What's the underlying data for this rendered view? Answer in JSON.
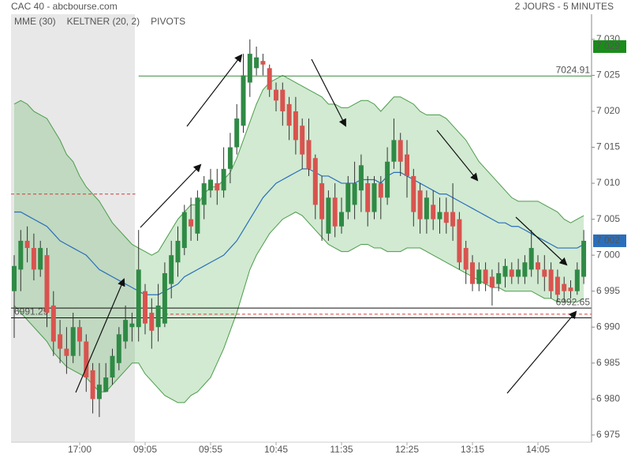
{
  "chart_data": {
    "type": "candlestick",
    "title": "CAC 40 - abcbourse.com",
    "subtitle": "2 JOURS - 5 MINUTES",
    "categories": [
      null,
      null,
      null,
      null,
      null,
      null,
      null,
      null,
      null,
      null,
      "17:00",
      null,
      null,
      null,
      null,
      null,
      null,
      null,
      null,
      null,
      "09:05",
      null,
      null,
      null,
      null,
      null,
      null,
      null,
      null,
      null,
      "09:55",
      null,
      null,
      null,
      null,
      null,
      null,
      null,
      null,
      null,
      "10:45",
      null,
      null,
      null,
      null,
      null,
      null,
      null,
      null,
      null,
      "11:35",
      null,
      null,
      null,
      null,
      null,
      null,
      null,
      null,
      null,
      "12:25",
      null,
      null,
      null,
      null,
      null,
      null,
      null,
      null,
      null,
      "13:15",
      null,
      null,
      null,
      null,
      null,
      null,
      null,
      null,
      null,
      "14:05",
      null,
      null,
      null,
      null,
      null,
      null,
      null
    ],
    "open": [
      6995,
      6998,
      7002,
      7001,
      6998,
      7000,
      6993,
      6989,
      6987,
      6986,
      6990,
      6988,
      6984,
      6980,
      6981,
      6983,
      6985,
      6988,
      6990,
      6990,
      6995,
      6992,
      6990,
      6990.5,
      6996,
      6999,
      7001,
      7005,
      7003,
      7007,
      7009,
      7010,
      7009,
      7012,
      7015,
      7018,
      7024,
      7026,
      7027,
      7026,
      7023,
      7023,
      7021,
      7020,
      7018,
      7016,
      7013.5,
      7010,
      7003,
      7008,
      7004,
      7006,
      7007,
      7009,
      7010,
      7006,
      7010,
      7008,
      7013,
      7016,
      7014,
      7011,
      7009,
      7005,
      7007,
      7005,
      7006,
      7006,
      7005,
      7001,
      6999,
      6996,
      6998,
      6997,
      6996,
      6997,
      6998,
      6997,
      6997,
      6998,
      6999,
      6998,
      6998,
      6997,
      6996,
      6995.5,
      6995,
      6997
    ],
    "high": [
      7000,
      7003.5,
      7004,
      7003,
      7002,
      7001,
      6995,
      6991,
      6990,
      6992,
      6991,
      6989,
      6985,
      6985,
      6985,
      6987,
      6990,
      6993,
      6992,
      7003.5,
      6996,
      6994,
      6996,
      6999,
      7002,
      7004,
      7007,
      7008,
      7009,
      7011,
      7012,
      7012,
      7015,
      7017,
      7021,
      7028,
      7030,
      7029,
      7028,
      7026.5,
      7024,
      7024,
      7022,
      7022,
      7019,
      7019,
      7014,
      7011,
      7009,
      7010,
      7008,
      7011,
      7013,
      7014,
      7011,
      7011,
      7011,
      7015,
      7019,
      7017,
      7016,
      7012,
      7010,
      7009,
      7009,
      7008,
      7008,
      7010,
      7006,
      7002,
      7000,
      6999,
      6999,
      6998,
      6999,
      6999.5,
      6999,
      6999.5,
      7000,
      7003.5,
      7000,
      7000,
      6999,
      6998,
      6997,
      6996.5,
      6999,
      7003.5
    ],
    "low": [
      6988.5,
      6995,
      6999,
      6996.5,
      6997,
      6990,
      6986,
      6985,
      6983.5,
      6985,
      6986,
      6981,
      6978,
      6977.5,
      6981,
      6982,
      6984,
      6987,
      6988,
      6988,
      6989,
      6987,
      6988,
      6990,
      6994,
      6997,
      7000,
      7002,
      7002,
      7005,
      7008,
      7007,
      7008,
      7010,
      7014,
      7017,
      7022,
      7025,
      7025,
      7022,
      7020,
      7018,
      7016,
      7014,
      7012,
      7011,
      7005,
      7002,
      7002,
      7002.5,
      7003,
      7005,
      7005,
      7006,
      7004,
      7005,
      7005,
      7007,
      7012,
      7011,
      7008,
      7004,
      7003,
      7003,
      7003.5,
      7003,
      7003,
      7002,
      6998,
      6996,
      6995,
      6995,
      6995,
      6993,
      6995,
      6995.5,
      6996,
      6996,
      6996,
      6997,
      6996,
      6995,
      6994,
      6993.5,
      6993.5,
      6994,
      6994.5,
      6996
    ],
    "close": [
      6998.5,
      7002,
      7001,
      6998,
      7001,
      6992,
      6988,
      6987,
      6986,
      6990,
      6988,
      6983,
      6980,
      6982,
      6983,
      6986,
      6989,
      6991,
      6990.5,
      6998,
      6990.5,
      6989.5,
      6993,
      6997.5,
      7000,
      7002,
      7006,
      7004,
      7008,
      7010,
      7010.5,
      7009,
      7012,
      7015,
      7019,
      7025,
      7028,
      7027.5,
      7026.5,
      7023,
      7021.5,
      7020,
      7018,
      7016,
      7014,
      7012,
      7007,
      7005,
      7008,
      7004,
      7006,
      7010,
      7010,
      7012.5,
      7006,
      7010,
      7008,
      7013,
      7016,
      7013,
      7011,
      7006,
      7005,
      7008,
      7005,
      7006,
      7004.5,
      7004,
      6999,
      6998,
      6996,
      6998,
      6996,
      6995.5,
      6997.5,
      6998.5,
      6997,
      6998,
      6999,
      7001,
      6998,
      6997,
      6995,
      6994.5,
      6995,
      6995,
      6998,
      7002
    ],
    "up_color": "#2f8a45",
    "down_color": "#d9534f",
    "indicators": [
      {
        "name": "MME (30)",
        "color": "#2a6ebb",
        "values": [
          7006,
          7006,
          7005.5,
          7005,
          7004.5,
          7004,
          7003,
          7002,
          7001.5,
          7001,
          7000.5,
          7000,
          6999,
          6998,
          6997.5,
          6997,
          6996.5,
          6996,
          6995.5,
          6995,
          6994.5,
          6994.5,
          6994.5,
          6995,
          6995.5,
          6996,
          6997,
          6997.5,
          6998,
          6998.5,
          6999,
          6999.5,
          7000,
          7001,
          7002,
          7003.5,
          7005,
          7006.5,
          7008,
          7009,
          7010,
          7010.5,
          7011,
          7011.5,
          7012,
          7012,
          7011.5,
          7011,
          7011,
          7010.5,
          7010,
          7010,
          7010,
          7010.5,
          7010.5,
          7010.5,
          7010,
          7011,
          7011.5,
          7011.5,
          7011,
          7010.5,
          7010,
          7009.5,
          7009,
          7008.5,
          7008.5,
          7008,
          7007.5,
          7007,
          7006.5,
          7006,
          7005.5,
          7005,
          7004.5,
          7004.5,
          7004,
          7004,
          7003.5,
          7003,
          7002.5,
          7002,
          7001.5,
          7001,
          7001,
          7001,
          7001,
          7001.5
        ]
      },
      {
        "name": "KELTNER (20, 2)",
        "color": "#4c9c4c",
        "upper": [
          7021,
          7021.5,
          7021,
          7020,
          7019.5,
          7019,
          7017.5,
          7016,
          7014,
          7013,
          7011,
          7009.5,
          7008.5,
          7007.5,
          7006,
          7004.5,
          7003.5,
          7002.5,
          7001.5,
          7001,
          7000.5,
          7000,
          7000.5,
          7002,
          7003.5,
          7005,
          7006,
          7007,
          7007,
          7008.5,
          7009.5,
          7009.5,
          7010.5,
          7011.5,
          7013.5,
          7016,
          7018.5,
          7021,
          7023,
          7024,
          7024.5,
          7025,
          7024.5,
          7024,
          7023.5,
          7023,
          7022.5,
          7022,
          7021,
          7021,
          7020.5,
          7020.5,
          7021,
          7021.5,
          7021.5,
          7021,
          7020,
          7021,
          7022,
          7022,
          7021.5,
          7021,
          7020,
          7019.5,
          7019.5,
          7019.5,
          7019,
          7018,
          7017,
          7016,
          7014.5,
          7013,
          7012,
          7011,
          7010,
          7009,
          7008,
          7007.5,
          7007.5,
          7007.5,
          7007.5,
          7007,
          7006.5,
          7006,
          7005,
          7004.5,
          7005,
          7005.5
        ],
        "lower": [
          6993,
          6992,
          6991,
          6990,
          6989,
          6988,
          6986.5,
          6985.5,
          6984.5,
          6984,
          6983.5,
          6983,
          6982,
          6981,
          6981,
          6982,
          6983,
          6984,
          6985,
          6985,
          6983.5,
          6982.5,
          6981.5,
          6980.5,
          6980,
          6979.5,
          6979.5,
          6980.5,
          6981,
          6982,
          6983,
          6985,
          6987,
          6989.5,
          6992,
          6995,
          6998,
          7000,
          7001.5,
          7003,
          7004,
          7005,
          7005.5,
          7006,
          7005.5,
          7004.5,
          7003.5,
          7002.5,
          7001.5,
          7001,
          7000.5,
          7000.5,
          7001,
          7001.5,
          7001.5,
          7001,
          7001,
          7000.5,
          7000.5,
          7000.5,
          7001,
          7001,
          7001,
          7000.5,
          7000,
          6999.5,
          6999,
          6998.5,
          6998,
          6997.5,
          6997,
          6996.5,
          6996,
          6995.5,
          6995.5,
          6995,
          6995,
          6995,
          6995,
          6995,
          6994.5,
          6994,
          6994,
          6993.5,
          6993.5,
          6993.5,
          6993.5,
          6994
        ]
      },
      {
        "name": "PIVOTS",
        "color": "#d33a3a",
        "values": [
          7008.5,
          6991.8
        ]
      }
    ],
    "levels": [
      {
        "value": 7024.91,
        "color": "#3a8a3a"
      },
      {
        "value": 6991.29,
        "color": "#111111"
      },
      {
        "value": 6992.65,
        "color": "#111111"
      }
    ],
    "price_tags": [
      {
        "value": 7029,
        "label": "7 029",
        "color": "#1a8c1a"
      },
      {
        "value": 7002,
        "label": "7 002",
        "color": "#2a6ebb"
      }
    ],
    "ylim": [
      6974,
      7033.5
    ],
    "yticks": [
      {
        "value": 6975,
        "label": "6 975"
      },
      {
        "value": 6980,
        "label": "6 980"
      },
      {
        "value": 6985,
        "label": "6 985"
      },
      {
        "value": 6990,
        "label": "6 990"
      },
      {
        "value": 6995,
        "label": "6 995"
      },
      {
        "value": 7000,
        "label": "7 000"
      },
      {
        "value": 7005,
        "label": "7 005"
      },
      {
        "value": 7010,
        "label": "7 010"
      },
      {
        "value": 7015,
        "label": "7 015"
      },
      {
        "value": 7020,
        "label": "7 020"
      },
      {
        "value": 7025,
        "label": "7 025"
      },
      {
        "value": 7030,
        "label": "7 030"
      }
    ]
  }
}
